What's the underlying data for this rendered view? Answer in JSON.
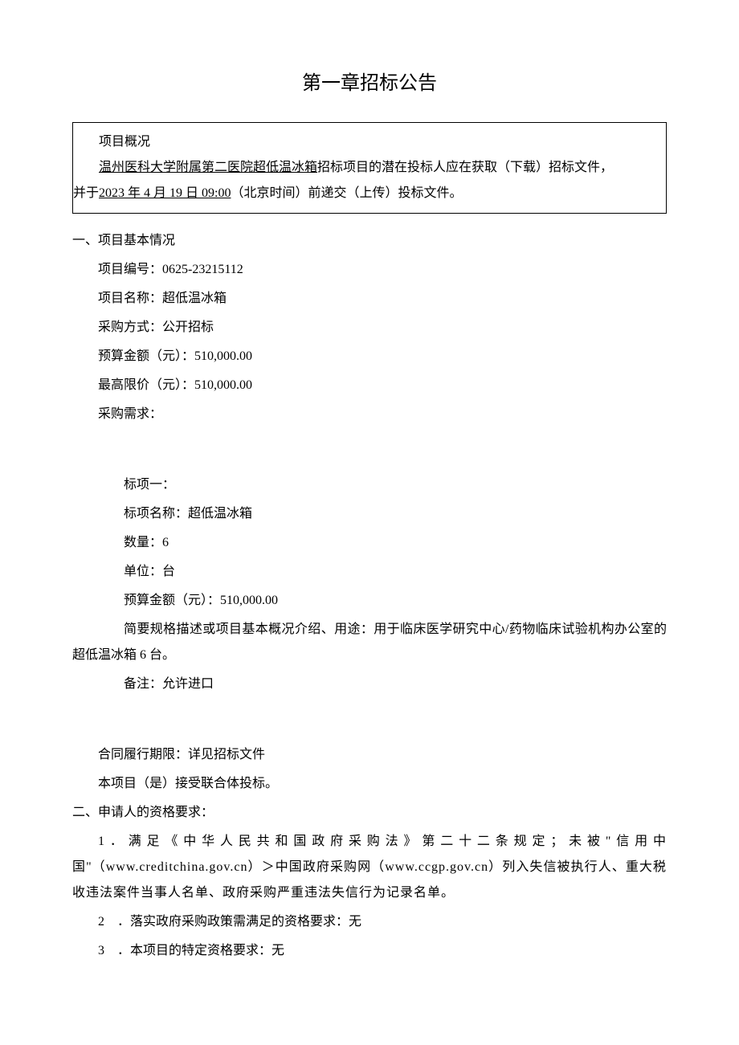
{
  "title": "第一章招标公告",
  "overview": {
    "heading": "项目概况",
    "line1_underline": "温州医科大学附属第二医院超低温冰箱",
    "line1_rest": "招标项目的潜在投标人应在获取（下载）招标文件，",
    "line2_prefix": "并于",
    "line2_underline": "2023 年 4 月 19 日 09:00",
    "line2_rest": "（北京时间）前递交（上传）投标文件。"
  },
  "section1": {
    "heading": "一、项目基本情况",
    "project_no_label": "项目编号：",
    "project_no": "0625-23215112",
    "project_name_label": "项目名称：",
    "project_name": "超低温冰箱",
    "method_label": "采购方式：",
    "method": "公开招标",
    "budget_label": "预算金额（元）：",
    "budget": "510,000.00",
    "max_label": "最高限价（元）：",
    "max": "510,000.00",
    "demand_label": "采购需求：",
    "lot": {
      "heading": "标项一：",
      "name_label": "标项名称：",
      "name": "超低温冰箱",
      "qty_label": "数量：",
      "qty": "6",
      "unit_label": "单位：",
      "unit": "台",
      "budget_label": "预算金额（元）：",
      "budget": "510,000.00",
      "desc": "简要规格描述或项目基本概况介绍、用途：用于临床医学研究中心/药物临床试验机构办公室的超低温冰箱 6 台。",
      "remark_label": "备注：",
      "remark": "允许进口"
    },
    "contract_label": "合同履行期限：",
    "contract": "详见招标文件",
    "consortium": "本项目（是）接受联合体投标。"
  },
  "section2": {
    "heading": "二、申请人的资格要求：",
    "item1": "1．满足《中华人民共和国政府采购法》第二十二条规定；未被\"信用中国\"（www.creditchina.gov.cn）＞中国政府采购网（www.ccgp.gov.cn）列入失信被执行人、重大税收违法案件当事人名单、政府采购严重违法失信行为记录名单。",
    "item2_num": "2",
    "item2_text": "．落实政府采购政策需满足的资格要求：无",
    "item3_num": "3",
    "item3_text": "．本项目的特定资格要求：无"
  }
}
